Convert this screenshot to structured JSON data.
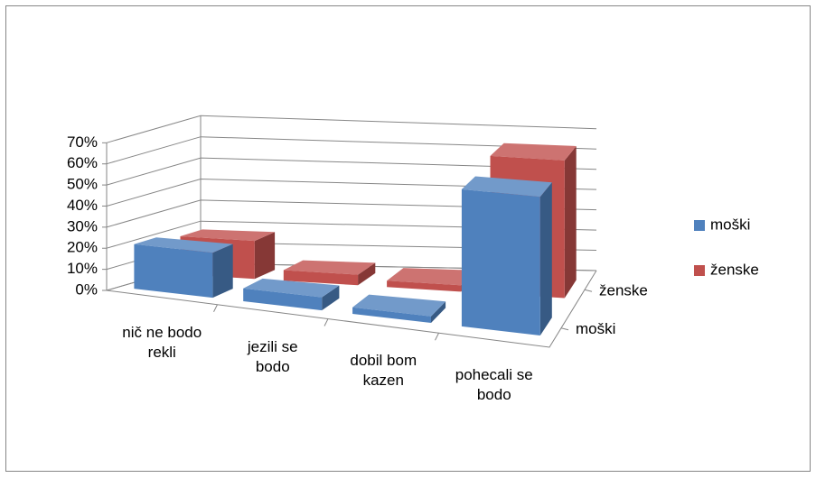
{
  "chart_data": {
    "type": "bar3d",
    "categories": [
      "nič ne bodo rekli",
      "jezili se bodo",
      "dobil bom kazen",
      "pohecali se bodo"
    ],
    "series": [
      {
        "name": "moški",
        "color": "#4f81bd",
        "values": [
          21,
          6,
          3,
          62
        ]
      },
      {
        "name": "ženske",
        "color": "#c0504d",
        "values": [
          18,
          5,
          3,
          65
        ]
      }
    ],
    "ylim": [
      0,
      70
    ],
    "yticks": [
      {
        "value": 0,
        "label": "0%"
      },
      {
        "value": 10,
        "label": "10%"
      },
      {
        "value": 20,
        "label": "20%"
      },
      {
        "value": 30,
        "label": "30%"
      },
      {
        "value": 40,
        "label": "40%"
      },
      {
        "value": 50,
        "label": "50%"
      },
      {
        "value": 60,
        "label": "60%"
      },
      {
        "value": 70,
        "label": "70%"
      }
    ],
    "grid": true,
    "legend": "right"
  }
}
